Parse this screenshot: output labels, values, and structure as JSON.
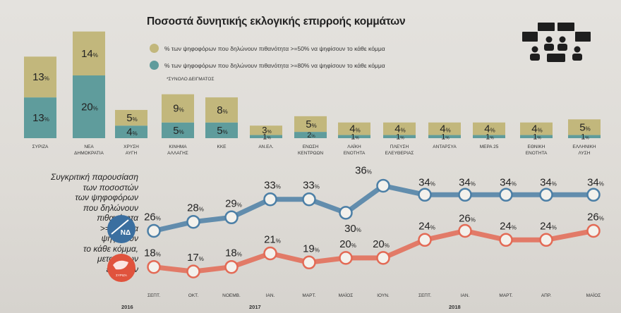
{
  "title": "Ποσοστά δυνητικής εκλογικής επιρροής κομμάτων",
  "legend": {
    "item1": "% των ψηφοφόρων που δηλώνουν πιθανότητα >=50% να ψηφίσουν το κάθε κόμμα",
    "item2": "% των ψηφοφόρων που δηλώνουν πιθανότητα >=80% να ψηφίσουν το κάθε κόμμα",
    "sample": "*ΣΥΝΟΛΟ ΔΕΙΓΜΑΤΟΣ"
  },
  "colors": {
    "ge50": "#c2b77c",
    "ge80": "#5f9c9c",
    "nd": "#4c7fa6",
    "syriza": "#e36a55"
  },
  "sidebar": {
    "lines": [
      "Συγκριτική παρουσίαση",
      "των ποσοστών",
      "των ψηφοφόρων",
      "που δηλώνουν",
      "πιθανότητα",
      ">=50% να",
      "ψηφίσουν",
      "το κάθε κόμμα,",
      "μεταξύ των",
      "ερευνών"
    ]
  },
  "logos": {
    "nd": "ΝΔ",
    "syriza": "ΣΥΡΙΖΑ"
  },
  "icons": {
    "parliament": "parliament-seats-icon"
  },
  "year_labels": {
    "y2016": "2016",
    "y2017": "2017",
    "y2018": "2018"
  },
  "chart_data": [
    {
      "type": "bar",
      "categories": [
        "ΣΥΡΙΖΑ",
        "ΝΕΑ ΔΗΜΟΚΡΑΤΙΑ",
        "ΧΡΥΣΗ ΑΥΓΗ",
        "ΚΙΝΗΜΑ ΑΛΛΑΓΗΣ",
        "ΚΚΕ",
        "ΑΝ.ΕΛ.",
        "ΕΝΩΣΗ ΚΕΝΤΡΩΩΝ",
        "ΛΑΪΚΗ ΕΝΟΤΗΤΑ",
        "ΠΛΕΥΣΗ ΕΛΕΥΘΕΡΙΑΣ",
        "ΑΝΤΑΡΣΥΑ",
        "ΜΕΡΑ 25",
        "ΕΘΝΙΚΗ ΕΝΟΤΗΤΑ",
        "ΕΛΛΗΝΙΚΗ ΛΥΣΗ"
      ],
      "category_lines": [
        [
          "ΣΥΡΙΖΑ"
        ],
        [
          "ΝΕΑ",
          "ΔΗΜΟΚΡΑΤΙΑ"
        ],
        [
          "ΧΡΥΣΗ",
          "ΑΥΓΗ"
        ],
        [
          "ΚΙΝΗΜΑ",
          "ΑΛΛΑΓΗΣ"
        ],
        [
          "ΚΚΕ"
        ],
        [
          "ΑΝ.ΕΛ."
        ],
        [
          "ΕΝΩΣΗ",
          "ΚΕΝΤΡΩΩΝ"
        ],
        [
          "ΛΑΪΚΗ",
          "ΕΝΟΤΗΤΑ"
        ],
        [
          "ΠΛΕΥΣΗ",
          "ΕΛΕΥΘΕΡΙΑΣ"
        ],
        [
          "ΑΝΤΑΡΣΥΑ"
        ],
        [
          "ΜΕΡΑ 25"
        ],
        [
          "ΕΘΝΙΚΗ",
          "ΕΝΟΤΗΤΑ"
        ],
        [
          "ΕΛΛΗΝΙΚΗ",
          "ΛΥΣΗ"
        ]
      ],
      "series": [
        {
          "name": "% των ψηφοφόρων που δηλώνουν πιθανότητα >=80% να ψηφίσουν το κάθε κόμμα",
          "values": [
            13,
            20,
            4,
            5,
            5,
            1,
            2,
            1,
            1,
            1,
            1,
            1,
            1
          ]
        },
        {
          "name": "% των ψηφοφόρων που δηλώνουν πιθανότητα >=50% να ψηφίσουν το κάθε κόμμα",
          "values": [
            13,
            14,
            5,
            9,
            8,
            3,
            5,
            4,
            4,
            4,
            4,
            4,
            5
          ]
        }
      ],
      "stacked": true,
      "unit": "%"
    },
    {
      "type": "line",
      "x": [
        "ΣΕΠΤ.",
        "ΟΚΤ.",
        "ΝΟΕΜΒ.",
        "ΙΑΝ.",
        "ΜΑΡΤ.",
        "ΜΑΪΟΣ",
        "ΙΟΥΝ.",
        "ΣΕΠΤ.",
        "ΙΑΝ.",
        "ΜΑΡΤ.",
        "ΑΠΡ.",
        "ΜΑΪΟΣ"
      ],
      "series": [
        {
          "name": "ΝΔ",
          "values": [
            26,
            28,
            29,
            33,
            33,
            30,
            36,
            34,
            34,
            34,
            34,
            34
          ]
        },
        {
          "name": "ΣΥΡΙΖΑ",
          "values": [
            18,
            17,
            18,
            21,
            19,
            20,
            20,
            24,
            26,
            24,
            24,
            26
          ]
        }
      ],
      "unit": "%",
      "ylim": [
        10,
        40
      ]
    }
  ]
}
